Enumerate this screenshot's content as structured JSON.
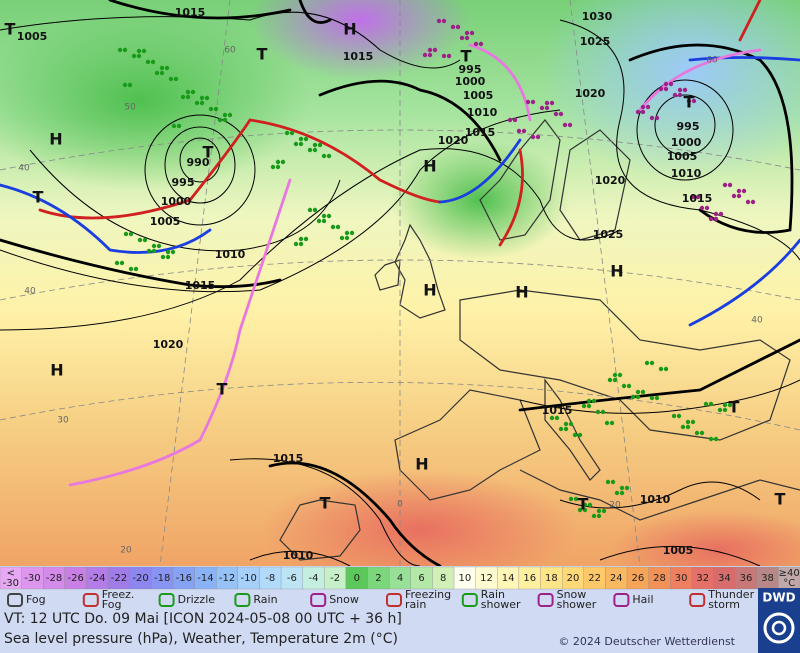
{
  "map": {
    "isobar_labels": [
      "1015",
      "1005",
      "1030",
      "1025",
      "1015",
      "995",
      "1000",
      "1005",
      "1010",
      "1015",
      "1020",
      "1020",
      "990",
      "995",
      "1000",
      "1005",
      "1010",
      "1015",
      "1020",
      "1025",
      "995",
      "1000",
      "1005",
      "1010",
      "1015",
      "1020",
      "1015",
      "1015",
      "1010",
      "1010",
      "1005"
    ],
    "center_labels": [
      "T",
      "T",
      "H",
      "T",
      "H",
      "T",
      "H",
      "T",
      "H",
      "H",
      "H",
      "H",
      "T",
      "H",
      "T",
      "T",
      "T",
      "T",
      "T"
    ],
    "grid_labels": [
      "60",
      "50",
      "40",
      "40",
      "30",
      "20",
      "60",
      "40",
      "0",
      "20"
    ]
  },
  "legend": {
    "temperature": {
      "labels": [
        "<\n-30",
        "-30",
        "-28",
        "-26",
        "-24",
        "-22",
        "-20",
        "-18",
        "-16",
        "-14",
        "-12",
        "-10",
        "-8",
        "-6",
        "-4",
        "-2",
        "0",
        "2",
        "4",
        "6",
        "8",
        "10",
        "12",
        "14",
        "16",
        "18",
        "20",
        "22",
        "24",
        "26",
        "28",
        "30",
        "32",
        "34",
        "36",
        "38",
        "≥40\n°C"
      ],
      "colors": [
        "#e6a8f2",
        "#dc96ee",
        "#d48ae8",
        "#c880e4",
        "#b47ce6",
        "#a07ce8",
        "#8c86ee",
        "#8894f2",
        "#86a2f4",
        "#8ab2f6",
        "#96c2f8",
        "#a6d0fa",
        "#b2dafa",
        "#bce4f4",
        "#c4eee0",
        "#c8f0c8",
        "#5cc85c",
        "#7cd67c",
        "#98e098",
        "#b4e8a8",
        "#d0f0b8",
        "#fffff0",
        "#fffbd0",
        "#fff6b8",
        "#fff0a0",
        "#ffe488",
        "#ffd878",
        "#ffc868",
        "#fab860",
        "#f6a458",
        "#f29258",
        "#ee8060",
        "#e47068",
        "#d86c6c",
        "#c87878",
        "#b88888",
        "#c0a8a8"
      ]
    },
    "weather": [
      "Fog",
      "Freez.\nFog",
      "Drizzle",
      "Rain",
      "Snow",
      "Freezing\nrain",
      "Rain\nshower",
      "Snow\nshower",
      "Hail",
      "Thunder\nstorm"
    ],
    "logo": "DWD"
  },
  "footer": {
    "valid_time": "VT: 12 UTC Do.  09 Mai [ICON 2024-05-08  00 UTC + 36 h]",
    "description": "Sea level pressure (hPa), Weather, Temperature 2m (°C)",
    "copyright": "© 2024 Deutscher Wetterdienst"
  }
}
